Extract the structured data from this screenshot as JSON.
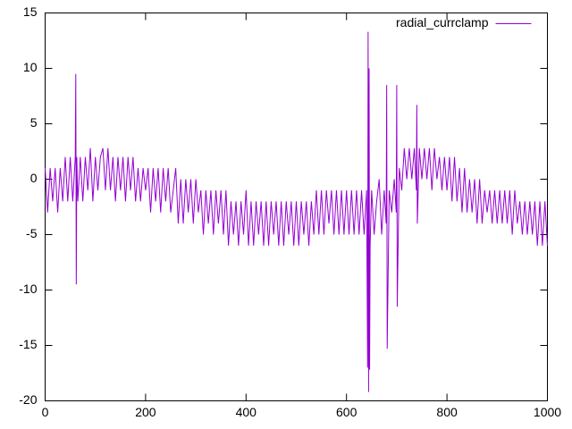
{
  "chart_data": {
    "type": "line",
    "legend": "top right",
    "xlim": [
      0,
      1000
    ],
    "xticks": [
      0,
      200,
      400,
      600,
      800,
      1000
    ],
    "ylim": [
      -20,
      15
    ],
    "yticks": [
      -20,
      -15,
      -10,
      -5,
      0,
      5,
      10,
      15
    ],
    "x": [
      0,
      5,
      10,
      15,
      20,
      25,
      30,
      35,
      40,
      45,
      50,
      55,
      60,
      61,
      62,
      63,
      65,
      70,
      75,
      80,
      85,
      90,
      95,
      100,
      105,
      110,
      115,
      120,
      125,
      130,
      135,
      140,
      145,
      150,
      155,
      160,
      165,
      170,
      175,
      180,
      185,
      190,
      195,
      200,
      205,
      210,
      215,
      220,
      225,
      230,
      235,
      240,
      245,
      250,
      255,
      260,
      265,
      270,
      275,
      280,
      285,
      290,
      295,
      300,
      305,
      310,
      315,
      320,
      325,
      330,
      335,
      340,
      345,
      350,
      355,
      360,
      365,
      370,
      375,
      380,
      385,
      390,
      395,
      400,
      405,
      410,
      415,
      420,
      425,
      430,
      435,
      440,
      445,
      450,
      455,
      460,
      465,
      470,
      475,
      480,
      485,
      490,
      495,
      500,
      505,
      510,
      515,
      520,
      525,
      530,
      535,
      540,
      545,
      550,
      555,
      560,
      565,
      570,
      575,
      580,
      585,
      590,
      595,
      600,
      605,
      610,
      615,
      620,
      625,
      630,
      635,
      640,
      642,
      643,
      644,
      645,
      646,
      647,
      650,
      655,
      660,
      665,
      670,
      675,
      679,
      680,
      681,
      685,
      690,
      695,
      699,
      700,
      701,
      705,
      710,
      715,
      720,
      725,
      730,
      735,
      739,
      740,
      741,
      745,
      750,
      755,
      760,
      765,
      770,
      775,
      780,
      785,
      790,
      795,
      800,
      805,
      810,
      815,
      820,
      825,
      830,
      835,
      840,
      845,
      850,
      855,
      860,
      865,
      870,
      875,
      880,
      885,
      890,
      895,
      900,
      905,
      910,
      915,
      920,
      925,
      930,
      935,
      940,
      945,
      950,
      955,
      960,
      965,
      970,
      975,
      980,
      985,
      990,
      995,
      1000
    ],
    "series": [
      {
        "name": "radial_currclamp",
        "color": "#9400d3",
        "values": [
          1,
          -3,
          1,
          -2,
          1,
          -3,
          1,
          -2,
          2,
          -2,
          2,
          -2,
          2,
          9.5,
          -9.5,
          2,
          -2,
          2,
          -2,
          2,
          -1,
          2.8,
          -2,
          2,
          -1,
          2,
          2.8,
          -1,
          2.8,
          -1,
          2,
          -2,
          2,
          -1,
          2,
          -2,
          2,
          -1,
          2,
          -2,
          1,
          -2,
          1,
          -1,
          1,
          -3,
          1,
          -2,
          1,
          -3,
          1,
          -2,
          1,
          -3,
          -1,
          1,
          -4,
          0,
          -4,
          0,
          -3,
          0,
          -4,
          0,
          -3,
          -1,
          -5,
          -1,
          -4,
          -1,
          -5,
          -1,
          -4,
          -1,
          -5,
          -1,
          -6,
          -2,
          -5,
          -2,
          -6,
          -2,
          -5,
          -1,
          -6,
          -2,
          -6,
          -2,
          -5,
          -2,
          -6,
          -2,
          -6,
          -2,
          -5,
          -2,
          -6,
          -2,
          -6,
          -2,
          -5,
          -2,
          -6,
          -2,
          -6,
          -2,
          -5,
          -2,
          -6,
          -2,
          -5,
          -1,
          -5,
          -1,
          -5,
          -1,
          -4,
          -1,
          -5,
          -1,
          -5,
          -1,
          -5,
          -1,
          -5,
          -1,
          -5,
          -1,
          -5,
          -1,
          -5,
          -1,
          -17,
          13.3,
          -19.2,
          10,
          -17.2,
          -6,
          -1,
          -5,
          -2,
          0,
          -5,
          -1,
          -4,
          8.5,
          -15.3,
          -1,
          -3,
          0,
          -3,
          8.5,
          -11.5,
          1,
          -1,
          2.8,
          0,
          2.8,
          0,
          2.8,
          -1,
          6.7,
          -4,
          2.8,
          0,
          2.8,
          0,
          2.8,
          -1,
          2.8,
          0,
          2,
          -1,
          2,
          -1,
          2,
          -2,
          2,
          -2,
          1,
          -3,
          1,
          -3,
          0,
          -3,
          0,
          -4,
          0,
          -4,
          -1,
          -3,
          -1,
          -4,
          -1,
          -4,
          -1,
          -4,
          -1,
          -4,
          -1,
          -5,
          -1,
          -4,
          -2,
          -5,
          -2,
          -5,
          -2,
          -5,
          -2,
          -6,
          -2,
          -6,
          -2,
          -6
        ]
      }
    ]
  }
}
